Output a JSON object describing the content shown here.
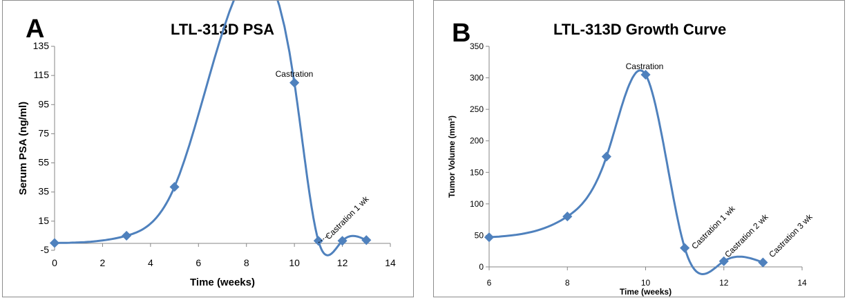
{
  "chart_data": [
    {
      "panel_letter": "A",
      "type": "line",
      "title": "LTL-313D PSA",
      "xlabel": "Time (weeks)",
      "ylabel": "Serum PSA (ng/ml)",
      "xlim": [
        0,
        14
      ],
      "ylim": [
        -5,
        135
      ],
      "x_ticks": [
        0,
        2,
        4,
        6,
        8,
        10,
        12,
        14
      ],
      "y_ticks": [
        -5,
        15,
        35,
        55,
        75,
        95,
        115,
        135
      ],
      "grid": false,
      "series": [
        {
          "x": [
            0,
            3,
            5,
            10,
            11,
            12,
            13
          ],
          "values": [
            0,
            5,
            38.5,
            110,
            1.5,
            1.5,
            2
          ]
        }
      ],
      "annotations": [
        {
          "text": "Castration",
          "x": 10,
          "y": 110
        },
        {
          "text": "Castration 1 wk",
          "x": 11,
          "y": 1.5
        }
      ],
      "color": "#4f81bd"
    },
    {
      "panel_letter": "B",
      "type": "line",
      "title": "LTL-313D Growth Curve",
      "xlabel": "Time (weeks)",
      "ylabel": "Tumor Volume (mm³)",
      "xlim": [
        6,
        14
      ],
      "ylim": [
        0,
        350
      ],
      "x_ticks": [
        6,
        8,
        10,
        12,
        14
      ],
      "y_ticks": [
        0,
        50,
        100,
        150,
        200,
        250,
        300,
        350
      ],
      "grid": false,
      "series": [
        {
          "x": [
            6,
            8,
            9,
            10,
            11,
            12,
            13
          ],
          "values": [
            47,
            80,
            175,
            305,
            30,
            9,
            7
          ]
        }
      ],
      "annotations": [
        {
          "text": "Castration",
          "x": 10,
          "y": 305
        },
        {
          "text": "Castration 1 wk",
          "x": 11,
          "y": 30
        },
        {
          "text": "Castration 2 wk",
          "x": 12,
          "y": 9
        },
        {
          "text": "Castration 3 wk",
          "x": 13,
          "y": 7
        }
      ],
      "color": "#4f81bd"
    }
  ]
}
